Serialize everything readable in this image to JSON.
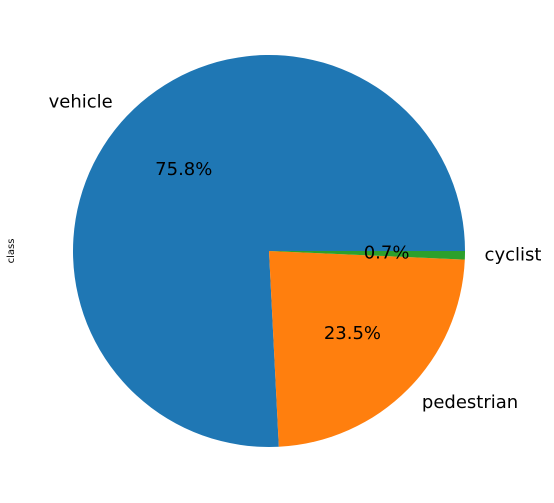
{
  "chart_data": {
    "type": "pie",
    "ylabel": "class",
    "slices": [
      {
        "label": "vehicle",
        "value": 75.8,
        "pct_label": "75.8%",
        "color": "#1f77b4"
      },
      {
        "label": "pedestrian",
        "value": 23.5,
        "pct_label": "23.5%",
        "color": "#ff7f0e"
      },
      {
        "label": "cyclist",
        "value": 0.7,
        "pct_label": "0.7%",
        "color": "#2ca02c"
      }
    ]
  }
}
